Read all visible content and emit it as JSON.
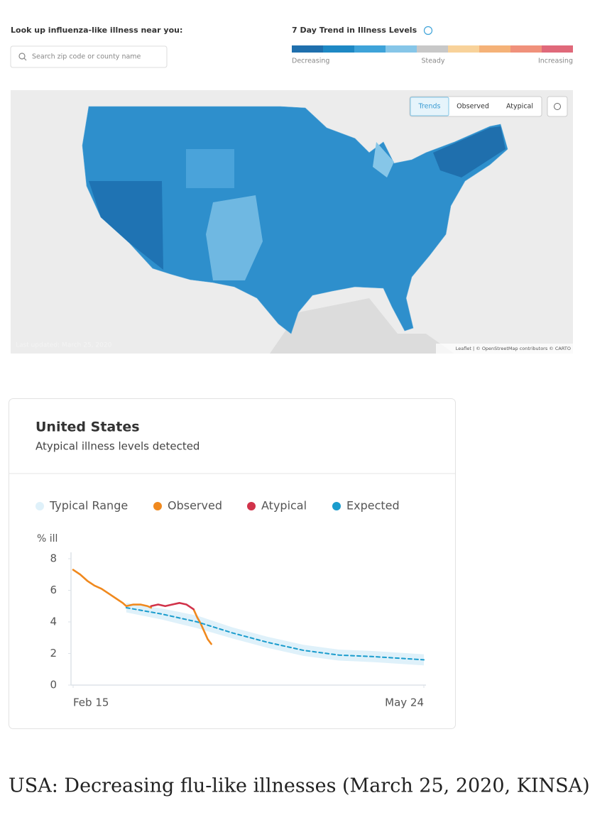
{
  "header": {
    "search_label": "Look up influenza-like illness near you:",
    "search_placeholder": "Search zip code or county name",
    "trend_title": "7 Day Trend in Illness Levels",
    "scale_colors": [
      "#1f6fad",
      "#1e88c4",
      "#3ea3d9",
      "#86c6e8",
      "#c8c8c8",
      "#f8d29a",
      "#f5b278",
      "#f0917b",
      "#e0697a"
    ],
    "scale_labels": [
      "Decreasing",
      "Steady",
      "Increasing"
    ]
  },
  "map": {
    "buttons": [
      "Trends",
      "Observed",
      "Atypical"
    ],
    "last_updated": "Last updated: March 25, 2020",
    "attribution": "Leaflet | © OpenStreetMap contributors © CARTO"
  },
  "card": {
    "title": "United States",
    "subtitle": "Atypical illness levels detected"
  },
  "chart_data": {
    "type": "line",
    "ylabel": "% ill",
    "xlim": [
      0,
      99
    ],
    "xticks": [
      {
        "value": 0,
        "label": "Feb 15"
      },
      {
        "value": 99,
        "label": "May 24"
      }
    ],
    "ylim": [
      0,
      8
    ],
    "yticks": [
      0,
      2,
      4,
      6,
      8
    ],
    "series": [
      {
        "name": "Typical Range",
        "color": "#dff1fa",
        "x": [
          15,
          25,
          35,
          45,
          55,
          65,
          75,
          85,
          99
        ],
        "lower": [
          4.6,
          4.15,
          3.6,
          2.95,
          2.35,
          1.85,
          1.55,
          1.45,
          1.25
        ],
        "upper": [
          5.2,
          4.85,
          4.4,
          3.65,
          3.05,
          2.55,
          2.25,
          2.15,
          1.95
        ]
      },
      {
        "name": "Observed",
        "color": "#f0891e",
        "x": [
          0,
          2,
          4,
          6,
          8,
          10,
          12,
          14,
          15,
          17,
          19,
          21,
          22,
          28,
          34,
          35,
          36,
          37,
          38,
          39
        ],
        "values": [
          7.3,
          7.0,
          6.6,
          6.3,
          6.1,
          5.8,
          5.5,
          5.2,
          5.0,
          5.1,
          5.1,
          5.0,
          4.9,
          null,
          4.8,
          4.3,
          3.9,
          3.4,
          2.9,
          2.6
        ]
      },
      {
        "name": "Atypical",
        "color": "#d1334a",
        "x": [
          22,
          24,
          26,
          28,
          30,
          32,
          34
        ],
        "values": [
          5.0,
          5.1,
          5.0,
          5.1,
          5.2,
          5.1,
          4.8
        ]
      },
      {
        "name": "Expected",
        "color": "#1a9ccd",
        "dashed": true,
        "x": [
          15,
          25,
          35,
          45,
          55,
          65,
          75,
          85,
          99
        ],
        "values": [
          4.9,
          4.5,
          4.0,
          3.3,
          2.7,
          2.2,
          1.9,
          1.8,
          1.6
        ]
      }
    ]
  },
  "caption": "USA: Decreasing flu-like illnesses (March 25, 2020, KINSA)"
}
